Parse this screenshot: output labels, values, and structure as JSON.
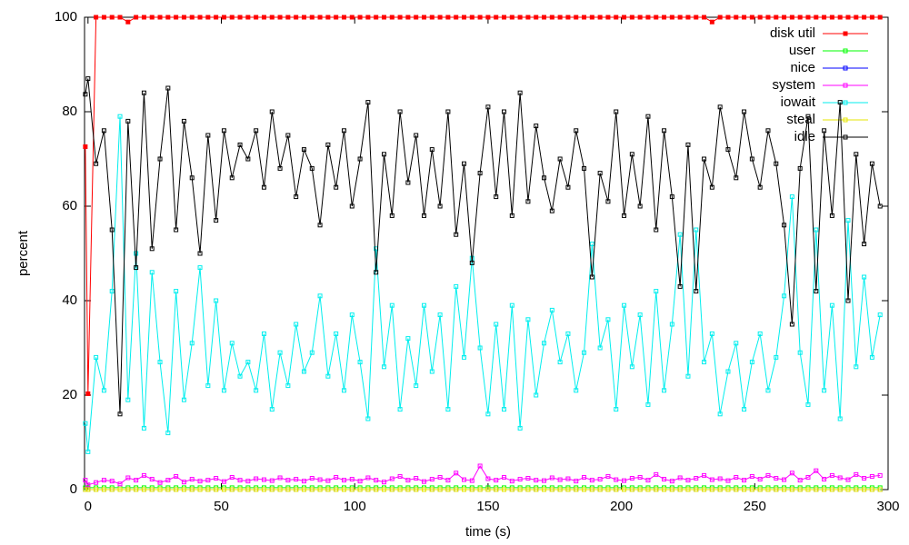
{
  "chart_data": {
    "type": "line",
    "xlabel": "time (s)",
    "ylabel": "percent",
    "xlim": [
      -1.3,
      300
    ],
    "xticks": [
      0,
      50,
      100,
      150,
      200,
      250,
      300
    ],
    "ylim": [
      0,
      100
    ],
    "yticks": [
      0,
      20,
      40,
      60,
      80,
      100
    ],
    "legend": "top-right",
    "x": [
      -1,
      0,
      3,
      6,
      9,
      12,
      15,
      18,
      21,
      24,
      27,
      30,
      33,
      36,
      39,
      42,
      45,
      48,
      51,
      54,
      57,
      60,
      63,
      66,
      69,
      72,
      75,
      78,
      81,
      84,
      87,
      90,
      93,
      96,
      99,
      102,
      105,
      108,
      111,
      114,
      117,
      120,
      123,
      126,
      129,
      132,
      135,
      138,
      141,
      144,
      147,
      150,
      153,
      156,
      159,
      162,
      165,
      168,
      171,
      174,
      177,
      180,
      183,
      186,
      189,
      192,
      195,
      198,
      201,
      204,
      207,
      210,
      213,
      216,
      219,
      222,
      225,
      228,
      231,
      234,
      237,
      240,
      243,
      246,
      249,
      252,
      255,
      258,
      261,
      264,
      267,
      270,
      273,
      276,
      279,
      282,
      285,
      288,
      291,
      294,
      297
    ],
    "series": [
      {
        "name": "disk util",
        "color": "#ff0000",
        "filled": true,
        "values": [
          72.6,
          20.3,
          100,
          100,
          100,
          100,
          99,
          100,
          100,
          100,
          100,
          100,
          100,
          100,
          100,
          100,
          100,
          100,
          100,
          100,
          100,
          100,
          100,
          100,
          100,
          100,
          100,
          100,
          100,
          100,
          100,
          100,
          100,
          100,
          100,
          100,
          100,
          100,
          100,
          100,
          100,
          100,
          100,
          100,
          100,
          100,
          100,
          100,
          100,
          100,
          100,
          100,
          100,
          100,
          100,
          100,
          100,
          100,
          100,
          100,
          100,
          100,
          100,
          100,
          100,
          100,
          100,
          100,
          100,
          100,
          100,
          100,
          100,
          100,
          100,
          100,
          100,
          100,
          100,
          99,
          100,
          100,
          100,
          100,
          100,
          100,
          100,
          100,
          100,
          100,
          100,
          100,
          100,
          100,
          100,
          100,
          100,
          100,
          100,
          100,
          100
        ]
      },
      {
        "name": "user",
        "color": "#00ff00",
        "values": [
          0.4,
          0.4,
          0.4,
          0.4,
          0.4,
          0.4,
          0.4,
          0.4,
          0.4,
          0.4,
          0.4,
          0.4,
          0.4,
          0.4,
          0.4,
          0.4,
          0.4,
          0.4,
          0.4,
          0.4,
          0.4,
          0.4,
          0.4,
          0.4,
          0.4,
          0.4,
          0.4,
          0.4,
          0.4,
          0.4,
          0.4,
          0.4,
          0.4,
          0.4,
          0.4,
          0.4,
          0.4,
          0.4,
          0.4,
          0.4,
          0.4,
          0.4,
          0.4,
          0.4,
          0.4,
          0.4,
          0.4,
          0.4,
          0.4,
          0.4,
          0.4,
          0.4,
          0.4,
          0.4,
          0.4,
          0.4,
          0.4,
          0.4,
          0.4,
          0.4,
          0.4,
          0.4,
          0.4,
          0.4,
          0.4,
          0.4,
          0.4,
          0.4,
          0.4,
          0.4,
          0.4,
          0.4,
          0.4,
          0.4,
          0.4,
          0.4,
          0.4,
          0.4,
          0.4,
          0.4,
          0.4,
          0.4,
          0.4,
          0.4,
          0.4,
          0.4,
          0.4,
          0.4,
          0.4,
          0.4,
          0.4,
          0.4,
          0.4,
          0.4,
          0.4,
          0.4,
          0.4,
          0.4,
          0.4,
          0.4,
          0.4
        ]
      },
      {
        "name": "nice",
        "color": "#0000ff",
        "values": [
          0,
          0,
          0,
          0,
          0,
          0,
          0,
          0,
          0,
          0,
          0,
          0,
          0,
          0,
          0,
          0,
          0,
          0,
          0,
          0,
          0,
          0,
          0,
          0,
          0,
          0,
          0,
          0,
          0,
          0,
          0,
          0,
          0,
          0,
          0,
          0,
          0,
          0,
          0,
          0,
          0,
          0,
          0,
          0,
          0,
          0,
          0,
          0,
          0,
          0,
          0,
          0,
          0,
          0,
          0,
          0,
          0,
          0,
          0,
          0,
          0,
          0,
          0,
          0,
          0,
          0,
          0,
          0,
          0,
          0,
          0,
          0,
          0,
          0,
          0,
          0,
          0,
          0,
          0,
          0,
          0,
          0,
          0,
          0,
          0,
          0,
          0,
          0,
          0,
          0,
          0,
          0,
          0,
          0,
          0,
          0,
          0,
          0,
          0,
          0,
          0
        ]
      },
      {
        "name": "system",
        "color": "#ff00ff",
        "values": [
          2,
          1,
          1.5,
          2,
          1.8,
          1.2,
          2.5,
          2,
          3,
          2.2,
          1.5,
          2,
          2.8,
          1.6,
          2.2,
          1.8,
          2,
          2.4,
          1.7,
          2.6,
          2,
          1.8,
          2.3,
          2.1,
          1.9,
          2.5,
          2,
          2.2,
          1.8,
          2.4,
          2.1,
          1.9,
          2.6,
          2,
          2.2,
          1.8,
          2.5,
          2,
          1.6,
          2.3,
          2.8,
          2,
          2.4,
          1.7,
          2.2,
          2.6,
          2,
          3.5,
          2.1,
          1.9,
          5,
          2.3,
          2,
          2.6,
          1.8,
          2.2,
          2.4,
          2,
          1.9,
          2.5,
          2.1,
          2.3,
          1.8,
          2.6,
          2,
          2.2,
          2.8,
          2.1,
          1.9,
          2.4,
          2.6,
          2,
          3.2,
          2.2,
          1.8,
          2.5,
          2,
          2.4,
          3,
          2.1,
          2.3,
          1.9,
          2.6,
          2,
          2.8,
          2.2,
          3,
          2.4,
          2.1,
          3.5,
          2,
          2.6,
          4,
          2.2,
          3,
          2.5,
          2.1,
          3.2,
          2.4,
          2.8,
          3
        ]
      },
      {
        "name": "iowait",
        "color": "#00eeee",
        "values": [
          14,
          8,
          28,
          21,
          42,
          79,
          19,
          50,
          13,
          46,
          27,
          12,
          42,
          19,
          31,
          47,
          22,
          40,
          21,
          31,
          24,
          27,
          21,
          33,
          17,
          29,
          22,
          35,
          25,
          29,
          41,
          24,
          33,
          21,
          37,
          27,
          15,
          51,
          26,
          39,
          17,
          32,
          22,
          39,
          25,
          37,
          17,
          43,
          28,
          49,
          30,
          16,
          35,
          17,
          39,
          13,
          36,
          20,
          31,
          38,
          27,
          33,
          21,
          29,
          52,
          30,
          36,
          17,
          39,
          26,
          37,
          18,
          42,
          21,
          35,
          54,
          24,
          55,
          27,
          33,
          16,
          25,
          31,
          17,
          27,
          33,
          21,
          28,
          41,
          62,
          29,
          18,
          55,
          21,
          39,
          15,
          57,
          26,
          45,
          28,
          37
        ]
      },
      {
        "name": "steal",
        "color": "#e6e600",
        "values": [
          0,
          0,
          0,
          0,
          0,
          0,
          0,
          0,
          0,
          0,
          0,
          0,
          0,
          0,
          0,
          0,
          0,
          0,
          0,
          0,
          0,
          0,
          0,
          0,
          0,
          0,
          0,
          0,
          0,
          0,
          0,
          0,
          0,
          0,
          0,
          0,
          0,
          0,
          0,
          0,
          0,
          0,
          0,
          0,
          0,
          0,
          0,
          0,
          0,
          0,
          0,
          0,
          0,
          0,
          0,
          0,
          0,
          0,
          0,
          0,
          0,
          0,
          0,
          0,
          0,
          0,
          0,
          0,
          0,
          0,
          0,
          0,
          0,
          0,
          0,
          0,
          0,
          0,
          0,
          0,
          0,
          0,
          0,
          0,
          0,
          0,
          0,
          0,
          0,
          0,
          0,
          0,
          0,
          0,
          0,
          0,
          0,
          0,
          0,
          0,
          0
        ]
      },
      {
        "name": "idle",
        "color": "#000000",
        "values": [
          83.7,
          87,
          69,
          76,
          55,
          16,
          78,
          47,
          84,
          51,
          70,
          85,
          55,
          78,
          66,
          50,
          75,
          57,
          76,
          66,
          73,
          70,
          76,
          64,
          80,
          68,
          75,
          62,
          72,
          68,
          56,
          73,
          64,
          76,
          60,
          70,
          82,
          46,
          71,
          58,
          80,
          65,
          75,
          58,
          72,
          60,
          80,
          54,
          69,
          48,
          67,
          81,
          62,
          80,
          58,
          84,
          61,
          77,
          66,
          59,
          70,
          64,
          76,
          68,
          45,
          67,
          61,
          80,
          58,
          71,
          60,
          79,
          55,
          76,
          62,
          43,
          73,
          42,
          70,
          64,
          81,
          72,
          66,
          80,
          70,
          64,
          76,
          69,
          56,
          35,
          68,
          79,
          42,
          76,
          58,
          82,
          40,
          71,
          52,
          69,
          60
        ]
      }
    ]
  }
}
